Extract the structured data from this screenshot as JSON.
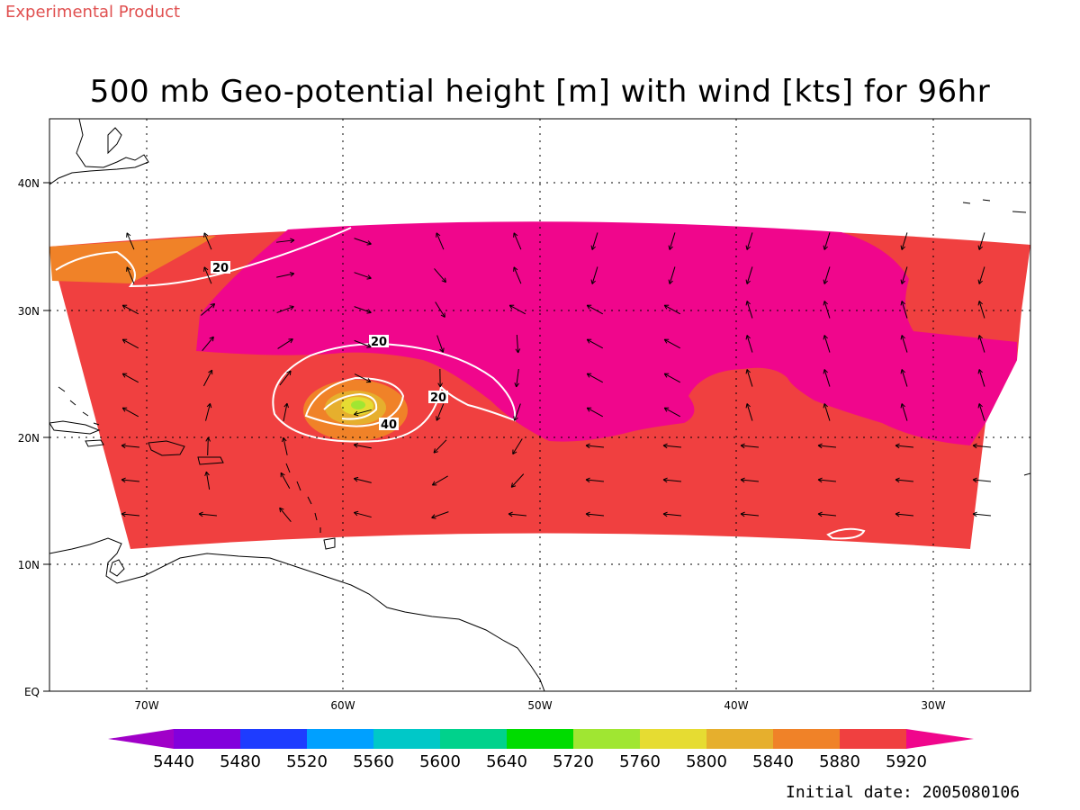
{
  "header": {
    "experimental_label": "Experimental Product",
    "title": "500 mb Geo-potential height [m] with wind [kts] for 96hr"
  },
  "map": {
    "lat_labels": [
      "40N",
      "30N",
      "20N",
      "10N",
      "EQ"
    ],
    "lon_labels": [
      "70W",
      "60W",
      "50W",
      "40W",
      "30W"
    ],
    "contour_labels": [
      "20",
      "20",
      "20",
      "40"
    ],
    "colors": {
      "fill_5880": "#f04040",
      "fill_5920": "#f0068c",
      "fill_5840": "#f08228",
      "fill_5800": "#e6af2d",
      "fill_5760": "#e6dc32",
      "fill_5720": "#a0e632",
      "coast": "#000000",
      "contour": "#ffffff"
    }
  },
  "colorbar": {
    "labels": [
      "5440",
      "5480",
      "5520",
      "5560",
      "5600",
      "5640",
      "5720",
      "5760",
      "5800",
      "5840",
      "5880",
      "5920"
    ],
    "colors": [
      "#a000c8",
      "#8200dc",
      "#1e3cff",
      "#00a0ff",
      "#00c8c8",
      "#00d28c",
      "#00dc00",
      "#a0e632",
      "#e6dc32",
      "#e6af2d",
      "#f08228",
      "#f04040",
      "#f0068c"
    ]
  },
  "footer": {
    "initial_date": "Initial date: 2005080106"
  }
}
